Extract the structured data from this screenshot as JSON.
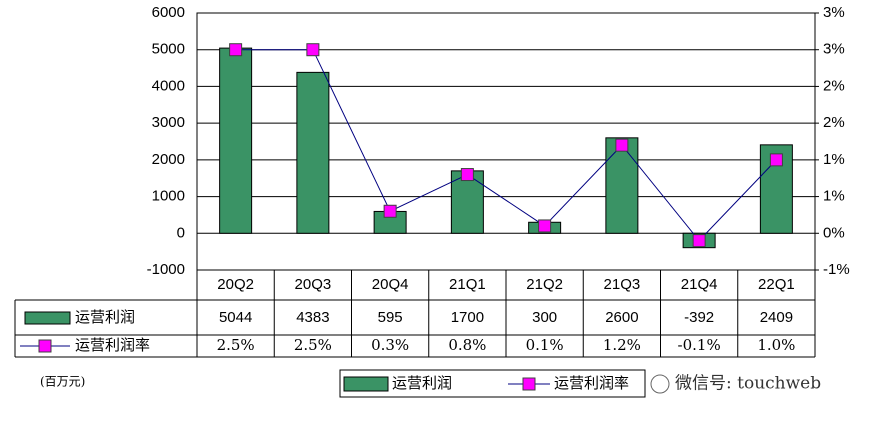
{
  "chart_data": {
    "type": "combo",
    "categories": [
      "20Q2",
      "20Q3",
      "20Q4",
      "21Q1",
      "21Q2",
      "21Q3",
      "21Q4",
      "22Q1"
    ],
    "series": [
      {
        "name": "运营利润",
        "type": "bar",
        "color": "#3a9365",
        "values": [
          5044,
          4383,
          595,
          1700,
          300,
          2600,
          -392,
          2409
        ]
      },
      {
        "name": "运营利润率",
        "type": "line",
        "axis": "y2",
        "color": "#ff00ff",
        "line_color": "#000080",
        "values": [
          2.5,
          2.5,
          0.3,
          0.8,
          0.1,
          1.2,
          -0.1,
          1.0
        ],
        "value_labels": [
          "2.5%",
          "2.5%",
          "0.3%",
          "0.8%",
          "0.1%",
          "1.2%",
          "-0.1%",
          "1.0%"
        ]
      }
    ],
    "ylim": [
      -1000,
      6000
    ],
    "yticks": [
      -1000,
      0,
      1000,
      2000,
      3000,
      4000,
      5000,
      6000
    ],
    "y2lim": [
      -0.5,
      3
    ],
    "y2ticks": [
      {
        "value": -0.5,
        "label": "-1%"
      },
      {
        "value": 0,
        "label": "0%"
      },
      {
        "value": 0.5,
        "label": "1%"
      },
      {
        "value": 1,
        "label": "1%"
      },
      {
        "value": 1.5,
        "label": "2%"
      },
      {
        "value": 2,
        "label": "2%"
      },
      {
        "value": 2.5,
        "label": "3%"
      },
      {
        "value": 3,
        "label": "3%"
      }
    ],
    "grid": true,
    "unit_note": "(百万元)"
  },
  "watermark": "微信号: touchweb"
}
